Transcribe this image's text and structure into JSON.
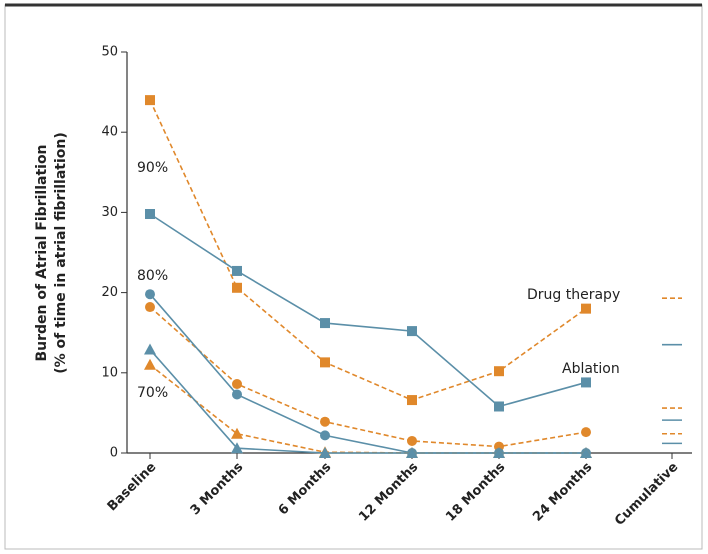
{
  "chart_data": {
    "type": "line",
    "ylabel": [
      "Burden of Atrial Fibrillation",
      "(% of time in atrial fibrillation)"
    ],
    "categories": [
      "Baseline",
      "3 Months",
      "6 Months",
      "12 Months",
      "18 Months",
      "24 Months",
      "Cumulative"
    ],
    "last_as_summary": true,
    "ylim": [
      0,
      50
    ],
    "yticks": [
      0,
      10,
      20,
      30,
      40,
      50
    ],
    "grid": false,
    "annotations": [
      "90%",
      "80%",
      "70%",
      "Drug therapy",
      "Ablation"
    ],
    "series": [
      {
        "color": "#e0882b",
        "dashed": true,
        "marker": "square",
        "values": [
          44,
          20.6,
          11.3,
          6.6,
          10.2,
          18,
          19.3
        ]
      },
      {
        "color": "#5b8fa8",
        "dashed": false,
        "marker": "square",
        "values": [
          29.8,
          22.7,
          16.2,
          15.2,
          5.8,
          8.8,
          13.5
        ]
      },
      {
        "color": "#e0882b",
        "dashed": true,
        "marker": "circle",
        "values": [
          18.2,
          8.6,
          3.9,
          1.5,
          0.8,
          2.6,
          5.6
        ]
      },
      {
        "color": "#5b8fa8",
        "dashed": false,
        "marker": "circle",
        "values": [
          19.8,
          7.3,
          2.2,
          0,
          0,
          0,
          4.1
        ]
      },
      {
        "color": "#e0882b",
        "dashed": true,
        "marker": "triangle",
        "values": [
          11,
          2.4,
          0.1,
          0,
          0,
          0,
          2.4
        ]
      },
      {
        "color": "#5b8fa8",
        "dashed": false,
        "marker": "triangle",
        "values": [
          12.9,
          0.6,
          0,
          0,
          0,
          0,
          1.2
        ]
      }
    ]
  }
}
